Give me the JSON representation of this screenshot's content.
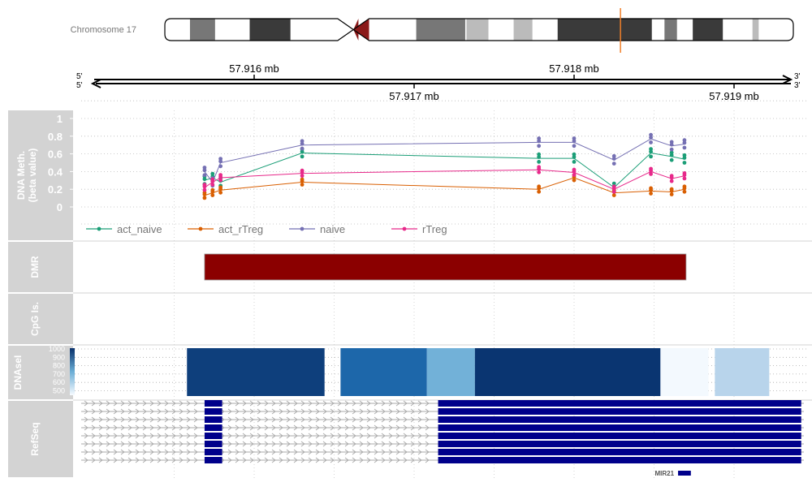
{
  "ideogram": {
    "label": "Chromosome 17",
    "bands": [
      {
        "start": 0.0,
        "end": 0.04,
        "fill": "#ffffff"
      },
      {
        "start": 0.04,
        "end": 0.08,
        "fill": "#777777"
      },
      {
        "start": 0.08,
        "end": 0.135,
        "fill": "#ffffff"
      },
      {
        "start": 0.135,
        "end": 0.2,
        "fill": "#3a3a3a"
      },
      {
        "start": 0.2,
        "end": 0.275,
        "fill": "#ffffff"
      },
      {
        "start": 0.275,
        "end": 0.308,
        "fill": "#8b1a1a"
      },
      {
        "start": 0.308,
        "end": 0.325,
        "fill": "#8b1a1a"
      },
      {
        "start": 0.325,
        "end": 0.4,
        "fill": "#ffffff"
      },
      {
        "start": 0.4,
        "end": 0.478,
        "fill": "#777777"
      },
      {
        "start": 0.478,
        "end": 0.48,
        "fill": "#ffffff"
      },
      {
        "start": 0.48,
        "end": 0.515,
        "fill": "#bbbbbb"
      },
      {
        "start": 0.515,
        "end": 0.555,
        "fill": "#ffffff"
      },
      {
        "start": 0.555,
        "end": 0.585,
        "fill": "#bbbbbb"
      },
      {
        "start": 0.585,
        "end": 0.625,
        "fill": "#ffffff"
      },
      {
        "start": 0.625,
        "end": 0.775,
        "fill": "#3a3a3a"
      },
      {
        "start": 0.775,
        "end": 0.795,
        "fill": "#ffffff"
      },
      {
        "start": 0.795,
        "end": 0.815,
        "fill": "#777777"
      },
      {
        "start": 0.815,
        "end": 0.84,
        "fill": "#ffffff"
      },
      {
        "start": 0.84,
        "end": 0.888,
        "fill": "#3a3a3a"
      },
      {
        "start": 0.888,
        "end": 0.935,
        "fill": "#ffffff"
      },
      {
        "start": 0.935,
        "end": 0.945,
        "fill": "#bbbbbb"
      },
      {
        "start": 0.945,
        "end": 1.0,
        "fill": "#ffffff"
      }
    ],
    "centromere": [
      0.275,
      0.325
    ],
    "marker": 0.725,
    "marker_color": "#f07f2a"
  },
  "axis": {
    "strand_left_top": "5'",
    "strand_left_bottom": "5'",
    "strand_right_top": "3'",
    "strand_right_bottom": "3'",
    "unit": "mb",
    "range": [
      57.915,
      57.9193
    ],
    "ticks_top": [
      57.916,
      57.918
    ],
    "ticks_bottom": [
      57.917,
      57.919
    ],
    "tick_labels_top": [
      "57.916 mb",
      "57.918 mb"
    ],
    "tick_labels_bottom": [
      "57.917 mb",
      "57.919 mb"
    ]
  },
  "tracks": {
    "meth_label_1": "DNA Meth.",
    "meth_label_2": "(beta value)",
    "dmr_label": "DMR",
    "cpg_label": "CpG Is.",
    "dnase_label": "DNAseI",
    "refseq_label": "RefSeq",
    "track_title_bg": "#d3d3d3"
  },
  "chart_data": {
    "type": "line",
    "title": "",
    "ylabel": "DNA Meth. (beta value)",
    "xlabel": "",
    "ylim": [
      0,
      1
    ],
    "yticks": [
      0,
      0.2,
      0.4,
      0.6,
      0.8,
      1
    ],
    "ytick_labels": [
      "0",
      "0.2",
      "0.4",
      "0.6",
      "0.8",
      "1"
    ],
    "legend_position": "bottom",
    "x": [
      57.91569,
      57.91574,
      57.91579,
      57.9163,
      57.91778,
      57.918,
      57.91825,
      57.91848,
      57.91861,
      57.91869
    ],
    "series": [
      {
        "name": "act_naive",
        "color": "#1b9e77",
        "values": [
          0.3,
          0.33,
          0.28,
          0.61,
          0.55,
          0.55,
          0.22,
          0.61,
          0.57,
          0.54
        ]
      },
      {
        "name": "act_rTreg",
        "color": "#d95f02",
        "values": [
          0.13,
          0.16,
          0.19,
          0.28,
          0.2,
          0.33,
          0.16,
          0.18,
          0.17,
          0.2
        ]
      },
      {
        "name": "naive",
        "color": "#7570b3",
        "values": [
          0.4,
          0.28,
          0.5,
          0.7,
          0.73,
          0.73,
          0.53,
          0.77,
          0.69,
          0.71
        ]
      },
      {
        "name": "rTreg",
        "color": "#e7298a",
        "values": [
          0.22,
          0.28,
          0.33,
          0.38,
          0.42,
          0.39,
          0.2,
          0.4,
          0.32,
          0.35
        ]
      }
    ],
    "dmr": {
      "start": 57.91569,
      "end": 57.9187,
      "color": "#8b0000"
    },
    "dnase": {
      "scale_ticks": [
        "1000",
        "900",
        "800",
        "700",
        "600",
        "500"
      ],
      "segments": [
        {
          "start": 57.91558,
          "end": 57.91644,
          "score": 940
        },
        {
          "start": 57.91654,
          "end": 57.91708,
          "score": 860
        },
        {
          "start": 57.91708,
          "end": 57.91738,
          "score": 700
        },
        {
          "start": 57.91738,
          "end": 57.91854,
          "score": 960
        },
        {
          "start": 57.91854,
          "end": 57.91884,
          "score": 460
        },
        {
          "start": 57.91888,
          "end": 57.91922,
          "score": 600
        }
      ]
    },
    "refseq": {
      "rows": 8,
      "exons": [
        {
          "start": 57.91569,
          "end": 57.9158
        },
        {
          "start": 57.91715,
          "end": 57.91942
        }
      ],
      "mir_label": "MIR21",
      "mir": {
        "start": 57.91865,
        "end": 57.91873
      },
      "color": "#00008b"
    }
  }
}
